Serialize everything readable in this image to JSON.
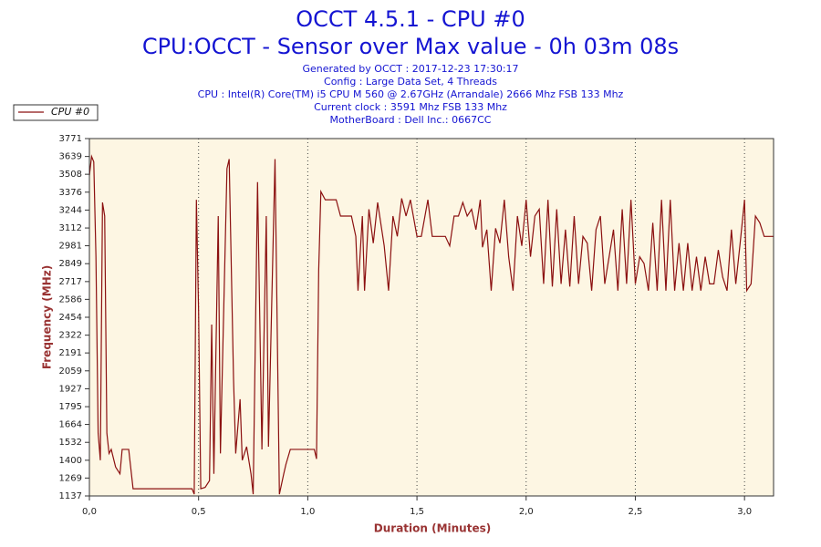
{
  "chart_data": {
    "type": "line",
    "title": [
      "OCCT 4.5.1 - CPU #0",
      "CPU:OCCT - Sensor over Max value - 0h 03m 08s"
    ],
    "subtitle": [
      "Generated by OCCT : 2017-12-23 17:30:17",
      "Config : Large Data Set, 4 Threads",
      "CPU : Intel(R) Core(TM) i5 CPU M 560 @ 2.67GHz (Arrandale) 2666 Mhz FSB 133 Mhz",
      "Current clock : 3591 Mhz FSB 133 Mhz",
      "MotherBoard : Dell Inc.: 0667CC"
    ],
    "xlabel": "Duration (Minutes)",
    "ylabel": "Frequency (MHz)",
    "legend": "top-left",
    "grid": "x",
    "background": "#fdf6e3",
    "xlim": [
      0,
      3.133
    ],
    "ylim": [
      1137,
      3771
    ],
    "xticks": [
      {
        "value": 0,
        "label": "0,0"
      },
      {
        "value": 0.5,
        "label": "0,5"
      },
      {
        "value": 1,
        "label": "1,0"
      },
      {
        "value": 1.5,
        "label": "1,5"
      },
      {
        "value": 2,
        "label": "2,0"
      },
      {
        "value": 2.5,
        "label": "2,5"
      },
      {
        "value": 3,
        "label": "3,0"
      }
    ],
    "yticks": [
      1137,
      1269,
      1400,
      1532,
      1664,
      1795,
      1927,
      2059,
      2191,
      2322,
      2454,
      2586,
      2717,
      2849,
      2981,
      3112,
      3244,
      3376,
      3508,
      3639,
      3771
    ],
    "x": [
      0,
      0.01,
      0.02,
      0.03,
      0.04,
      0.05,
      0.06,
      0.07,
      0.08,
      0.09,
      0.1,
      0.12,
      0.14,
      0.15,
      0.18,
      0.2,
      0.3,
      0.47,
      0.48,
      0.49,
      0.5,
      0.51,
      0.53,
      0.55,
      0.56,
      0.57,
      0.59,
      0.6,
      0.63,
      0.64,
      0.66,
      0.67,
      0.69,
      0.7,
      0.72,
      0.74,
      0.75,
      0.77,
      0.79,
      0.81,
      0.82,
      0.85,
      0.87,
      0.89,
      0.9,
      0.92,
      1.0,
      1.03,
      1.04,
      1.05,
      1.06,
      1.08,
      1.13,
      1.15,
      1.2,
      1.22,
      1.23,
      1.25,
      1.26,
      1.28,
      1.3,
      1.32,
      1.35,
      1.37,
      1.39,
      1.41,
      1.43,
      1.45,
      1.47,
      1.5,
      1.52,
      1.55,
      1.57,
      1.63,
      1.65,
      1.67,
      1.69,
      1.71,
      1.73,
      1.75,
      1.77,
      1.79,
      1.8,
      1.82,
      1.84,
      1.86,
      1.88,
      1.9,
      1.92,
      1.94,
      1.96,
      1.98,
      2.0,
      2.02,
      2.04,
      2.06,
      2.08,
      2.1,
      2.12,
      2.14,
      2.16,
      2.18,
      2.2,
      2.22,
      2.24,
      2.26,
      2.28,
      2.3,
      2.32,
      2.34,
      2.36,
      2.38,
      2.4,
      2.42,
      2.44,
      2.46,
      2.48,
      2.5,
      2.52,
      2.54,
      2.56,
      2.58,
      2.6,
      2.62,
      2.64,
      2.66,
      2.68,
      2.7,
      2.72,
      2.74,
      2.76,
      2.78,
      2.8,
      2.82,
      2.84,
      2.86,
      2.88,
      2.9,
      2.92,
      2.94,
      2.96,
      2.98,
      3.0,
      3.01,
      3.03,
      3.05,
      3.07,
      3.09,
      3.133
    ],
    "series": [
      {
        "name": "CPU #0",
        "color": "#8b1010",
        "values": [
          3500,
          3639,
          3600,
          2900,
          1600,
          1400,
          3300,
          3200,
          1600,
          1450,
          1480,
          1350,
          1300,
          1480,
          1480,
          1190,
          1190,
          1190,
          1150,
          3320,
          2500,
          1190,
          1200,
          1250,
          2400,
          1300,
          3200,
          1450,
          3550,
          3620,
          2000,
          1450,
          1850,
          1400,
          1500,
          1300,
          1150,
          3450,
          1480,
          3200,
          1500,
          3620,
          1150,
          1300,
          1370,
          1480,
          1480,
          1480,
          1410,
          2800,
          3380,
          3320,
          3320,
          3200,
          3200,
          3050,
          2650,
          3200,
          2650,
          3250,
          3000,
          3300,
          2980,
          2650,
          3200,
          3050,
          3330,
          3200,
          3320,
          3050,
          3050,
          3320,
          3050,
          3050,
          2980,
          3200,
          3200,
          3300,
          3200,
          3250,
          3100,
          3320,
          2970,
          3100,
          2650,
          3110,
          3000,
          3320,
          2900,
          2650,
          3200,
          2980,
          3320,
          2900,
          3200,
          3250,
          2700,
          3320,
          2680,
          3250,
          2700,
          3100,
          2680,
          3200,
          2700,
          3050,
          3000,
          2650,
          3100,
          3200,
          2700,
          2900,
          3100,
          2650,
          3250,
          2700,
          3320,
          2700,
          2900,
          2850,
          2650,
          3150,
          2650,
          3320,
          2650,
          3320,
          2650,
          3000,
          2650,
          3000,
          2650,
          2900,
          2650,
          2900,
          2700,
          2700,
          2950,
          2750,
          2650,
          3100,
          2700,
          3000,
          3320,
          2650,
          2700,
          3200,
          3150,
          3050,
          3050
        ]
      }
    ]
  }
}
